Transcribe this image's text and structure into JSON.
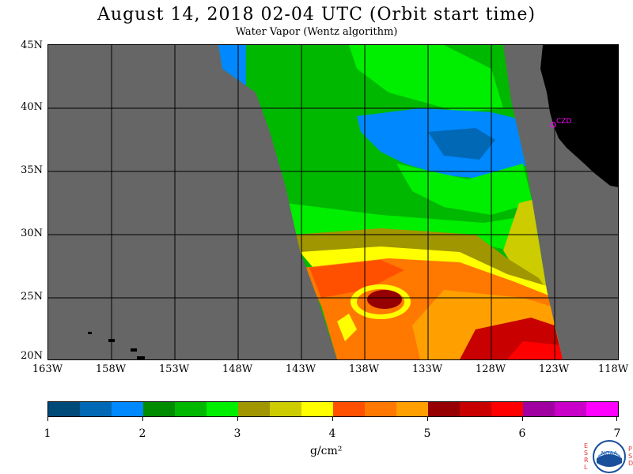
{
  "title": "August 14, 2018  02-04 UTC  (Orbit start time)",
  "subtitle": "Water Vapor (Wentz algorithm)",
  "map": {
    "lat_labels": [
      "45N",
      "40N",
      "35N",
      "30N",
      "25N",
      "20N"
    ],
    "lon_labels": [
      "163W",
      "158W",
      "153W",
      "148W",
      "143W",
      "138W",
      "133W",
      "128W",
      "123W",
      "118W"
    ],
    "station_label": "CZD",
    "land_color": "#000000",
    "no_data_color": "#666666",
    "station_color": "#ff00ff"
  },
  "colorbar": {
    "colors": [
      "#004a7a",
      "#0068b5",
      "#0088ff",
      "#008c00",
      "#00b800",
      "#00ee00",
      "#a09600",
      "#cccc00",
      "#ffff00",
      "#ff5000",
      "#ff7800",
      "#ffa000",
      "#960000",
      "#c80000",
      "#ff0000",
      "#a000a0",
      "#c800c8",
      "#ff00ff"
    ],
    "labels": [
      "1",
      "2",
      "3",
      "4",
      "5",
      "6",
      "7"
    ],
    "units": "g/cm²"
  },
  "logo": {
    "left_letters": [
      "E",
      "S",
      "R",
      "L"
    ],
    "right_letters": [
      "P",
      "S",
      "D"
    ],
    "text": "NOAA"
  }
}
